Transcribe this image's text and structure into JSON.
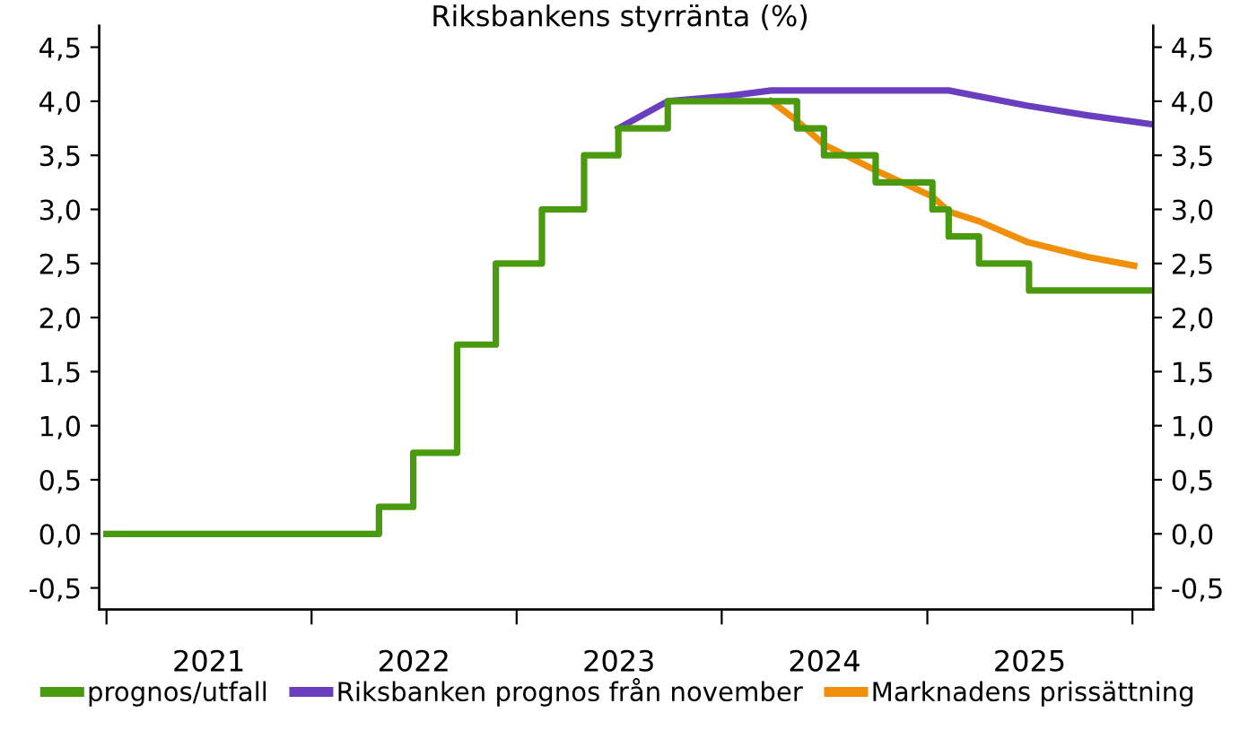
{
  "chart_data": {
    "type": "line",
    "title": "Riksbankens styrränta (%)",
    "xlim": [
      "2020-12-19",
      "2026-02-07"
    ],
    "xticks": [
      {
        "value": "2021-01-01",
        "label": null
      },
      {
        "value": "2021-07-02",
        "label": "2021"
      },
      {
        "value": "2022-01-01",
        "label": null
      },
      {
        "value": "2022-07-02",
        "label": "2022"
      },
      {
        "value": "2023-01-01",
        "label": null
      },
      {
        "value": "2023-07-02",
        "label": "2023"
      },
      {
        "value": "2024-01-01",
        "label": null
      },
      {
        "value": "2024-07-02",
        "label": "2024"
      },
      {
        "value": "2025-01-01",
        "label": null
      },
      {
        "value": "2025-07-02",
        "label": "2025"
      },
      {
        "value": "2026-01-01",
        "label": null
      }
    ],
    "ylim": [
      -0.7,
      4.7
    ],
    "yticks": [
      {
        "value": -0.5,
        "label": "-0,5"
      },
      {
        "value": 0,
        "label": "0,0"
      },
      {
        "value": 0.5,
        "label": "0,5"
      },
      {
        "value": 1,
        "label": "1,0"
      },
      {
        "value": 1.5,
        "label": "1,5"
      },
      {
        "value": 2,
        "label": "2,0"
      },
      {
        "value": 2.5,
        "label": "2,5"
      },
      {
        "value": 3,
        "label": "3,0"
      },
      {
        "value": 3.5,
        "label": "3,5"
      },
      {
        "value": 4,
        "label": "4,0"
      },
      {
        "value": 4.5,
        "label": "4,5"
      }
    ],
    "y2lim": [
      -0.7,
      4.7
    ],
    "y2ticks": [
      {
        "value": -0.5,
        "label": "-0,5"
      },
      {
        "value": 0,
        "label": "0,0"
      },
      {
        "value": 0.5,
        "label": "0,5"
      },
      {
        "value": 1,
        "label": "1,0"
      },
      {
        "value": 1.5,
        "label": "1,5"
      },
      {
        "value": 2,
        "label": "2,0"
      },
      {
        "value": 2.5,
        "label": "2,5"
      },
      {
        "value": 3,
        "label": "3,0"
      },
      {
        "value": 3.5,
        "label": "3,5"
      },
      {
        "value": 4,
        "label": "4,0"
      },
      {
        "value": 4.5,
        "label": "4,5"
      }
    ],
    "grid": false,
    "legend": "bottom",
    "marker": "none",
    "line_style": "solid",
    "series": [
      {
        "name": "prognos/utfall",
        "type": "step",
        "color": "#4a9a0f",
        "x": [
          "2021-01-01",
          "2022-05-01",
          "2022-07-01",
          "2022-09-17",
          "2022-11-25",
          "2023-02-15",
          "2023-05-01",
          "2023-07-01",
          "2023-09-27",
          "2024-05-14",
          "2024-07-01",
          "2024-10-01",
          "2025-01-10",
          "2025-02-08",
          "2025-04-03",
          "2025-07-01",
          "2026-02-01"
        ],
        "values": [
          0,
          0.25,
          0.75,
          1.75,
          2.5,
          3.0,
          3.5,
          3.75,
          4.0,
          3.75,
          3.5,
          3.25,
          3.0,
          2.75,
          2.5,
          2.25,
          2.25
        ]
      },
      {
        "name": "Riksbanken prognos från november",
        "color": "#6a3fbf",
        "x": [
          "2023-07-01",
          "2023-09-27",
          "2024-01-15",
          "2024-03-29",
          "2025-02-08",
          "2025-06-27",
          "2025-10-13",
          "2026-02-01"
        ],
        "values": [
          3.75,
          4.0,
          4.05,
          4.1,
          4.1,
          3.96,
          3.87,
          3.79
        ]
      },
      {
        "name": "Marknadens prissättning",
        "color": "#f0900a",
        "x": [
          "2024-03-29",
          "2024-05-14",
          "2024-07-01",
          "2024-10-01",
          "2025-01-10",
          "2025-02-08",
          "2025-04-03",
          "2025-06-27",
          "2025-10-13",
          "2026-01-04"
        ],
        "values": [
          4.0,
          3.82,
          3.6,
          3.36,
          3.12,
          2.98,
          2.89,
          2.7,
          2.56,
          2.48
        ]
      }
    ]
  }
}
